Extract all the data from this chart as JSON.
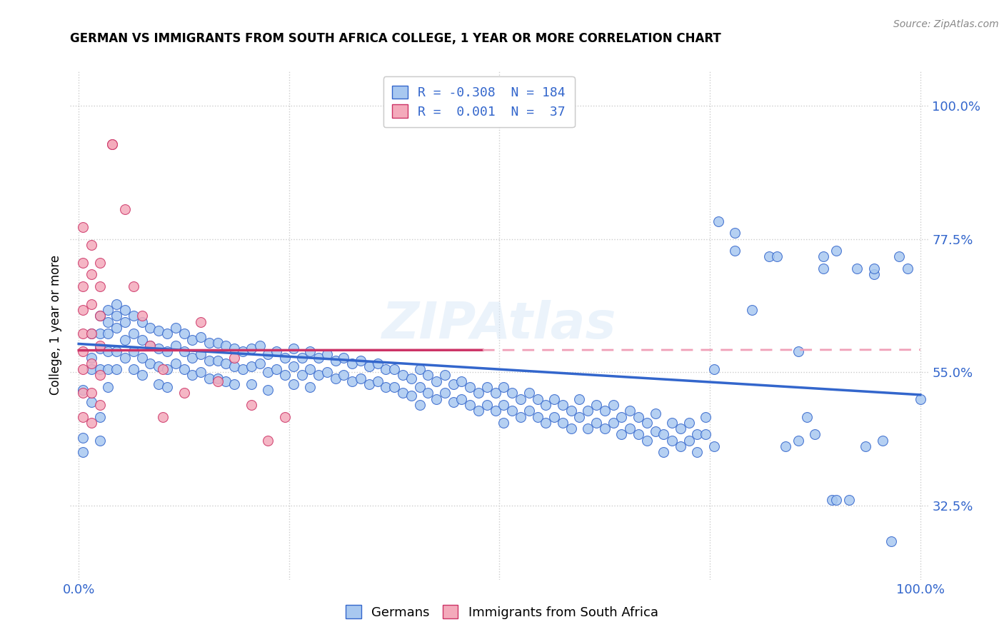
{
  "title": "GERMAN VS IMMIGRANTS FROM SOUTH AFRICA COLLEGE, 1 YEAR OR MORE CORRELATION CHART",
  "source_text": "Source: ZipAtlas.com",
  "ylabel": "College, 1 year or more",
  "blue_scatter_color": "#a8c8f0",
  "pink_scatter_color": "#f4aabb",
  "blue_line_color": "#3366cc",
  "pink_line_color": "#cc3366",
  "pink_line_dashed_color": "#f0a0b8",
  "blue_line_start_x": 0.0,
  "blue_line_start_y": 0.598,
  "blue_line_end_x": 1.0,
  "blue_line_end_y": 0.512,
  "pink_line_start_x": 0.0,
  "pink_line_start_y": 0.587,
  "pink_line_end_x": 1.0,
  "pink_line_end_y": 0.588,
  "watermark": "ZIPAtlas",
  "xlim": [
    -0.01,
    1.01
  ],
  "ylim": [
    0.2,
    1.06
  ],
  "y_axis_ticks": [
    0.325,
    0.55,
    0.775,
    1.0
  ],
  "x_axis_ticks": [
    0.0,
    0.25,
    0.5,
    0.75,
    1.0
  ],
  "x_tick_labels_show": [
    "0.0%",
    "",
    "",
    "",
    "100.0%"
  ],
  "blue_points": [
    [
      0.005,
      0.52
    ],
    [
      0.005,
      0.44
    ],
    [
      0.005,
      0.415
    ],
    [
      0.015,
      0.615
    ],
    [
      0.015,
      0.575
    ],
    [
      0.015,
      0.555
    ],
    [
      0.015,
      0.5
    ],
    [
      0.025,
      0.645
    ],
    [
      0.025,
      0.615
    ],
    [
      0.025,
      0.59
    ],
    [
      0.025,
      0.555
    ],
    [
      0.025,
      0.475
    ],
    [
      0.025,
      0.435
    ],
    [
      0.035,
      0.655
    ],
    [
      0.035,
      0.635
    ],
    [
      0.035,
      0.615
    ],
    [
      0.035,
      0.585
    ],
    [
      0.035,
      0.555
    ],
    [
      0.035,
      0.525
    ],
    [
      0.045,
      0.665
    ],
    [
      0.045,
      0.645
    ],
    [
      0.045,
      0.625
    ],
    [
      0.045,
      0.585
    ],
    [
      0.045,
      0.555
    ],
    [
      0.055,
      0.655
    ],
    [
      0.055,
      0.635
    ],
    [
      0.055,
      0.605
    ],
    [
      0.055,
      0.575
    ],
    [
      0.065,
      0.645
    ],
    [
      0.065,
      0.615
    ],
    [
      0.065,
      0.585
    ],
    [
      0.065,
      0.555
    ],
    [
      0.075,
      0.635
    ],
    [
      0.075,
      0.605
    ],
    [
      0.075,
      0.575
    ],
    [
      0.075,
      0.545
    ],
    [
      0.085,
      0.625
    ],
    [
      0.085,
      0.595
    ],
    [
      0.085,
      0.565
    ],
    [
      0.095,
      0.62
    ],
    [
      0.095,
      0.59
    ],
    [
      0.095,
      0.56
    ],
    [
      0.095,
      0.53
    ],
    [
      0.105,
      0.615
    ],
    [
      0.105,
      0.585
    ],
    [
      0.105,
      0.555
    ],
    [
      0.105,
      0.525
    ],
    [
      0.115,
      0.625
    ],
    [
      0.115,
      0.595
    ],
    [
      0.115,
      0.565
    ],
    [
      0.125,
      0.615
    ],
    [
      0.125,
      0.585
    ],
    [
      0.125,
      0.555
    ],
    [
      0.135,
      0.605
    ],
    [
      0.135,
      0.575
    ],
    [
      0.135,
      0.545
    ],
    [
      0.145,
      0.61
    ],
    [
      0.145,
      0.58
    ],
    [
      0.145,
      0.55
    ],
    [
      0.155,
      0.6
    ],
    [
      0.155,
      0.57
    ],
    [
      0.155,
      0.54
    ],
    [
      0.165,
      0.6
    ],
    [
      0.165,
      0.57
    ],
    [
      0.165,
      0.54
    ],
    [
      0.175,
      0.595
    ],
    [
      0.175,
      0.565
    ],
    [
      0.175,
      0.535
    ],
    [
      0.185,
      0.59
    ],
    [
      0.185,
      0.56
    ],
    [
      0.185,
      0.53
    ],
    [
      0.195,
      0.585
    ],
    [
      0.195,
      0.555
    ],
    [
      0.205,
      0.59
    ],
    [
      0.205,
      0.56
    ],
    [
      0.205,
      0.53
    ],
    [
      0.215,
      0.595
    ],
    [
      0.215,
      0.565
    ],
    [
      0.225,
      0.58
    ],
    [
      0.225,
      0.55
    ],
    [
      0.225,
      0.52
    ],
    [
      0.235,
      0.585
    ],
    [
      0.235,
      0.555
    ],
    [
      0.245,
      0.575
    ],
    [
      0.245,
      0.545
    ],
    [
      0.255,
      0.59
    ],
    [
      0.255,
      0.56
    ],
    [
      0.255,
      0.53
    ],
    [
      0.265,
      0.575
    ],
    [
      0.265,
      0.545
    ],
    [
      0.275,
      0.585
    ],
    [
      0.275,
      0.555
    ],
    [
      0.275,
      0.525
    ],
    [
      0.285,
      0.575
    ],
    [
      0.285,
      0.545
    ],
    [
      0.295,
      0.58
    ],
    [
      0.295,
      0.55
    ],
    [
      0.305,
      0.57
    ],
    [
      0.305,
      0.54
    ],
    [
      0.315,
      0.575
    ],
    [
      0.315,
      0.545
    ],
    [
      0.325,
      0.565
    ],
    [
      0.325,
      0.535
    ],
    [
      0.335,
      0.57
    ],
    [
      0.335,
      0.54
    ],
    [
      0.345,
      0.56
    ],
    [
      0.345,
      0.53
    ],
    [
      0.355,
      0.565
    ],
    [
      0.355,
      0.535
    ],
    [
      0.365,
      0.555
    ],
    [
      0.365,
      0.525
    ],
    [
      0.375,
      0.555
    ],
    [
      0.375,
      0.525
    ],
    [
      0.385,
      0.545
    ],
    [
      0.385,
      0.515
    ],
    [
      0.395,
      0.54
    ],
    [
      0.395,
      0.51
    ],
    [
      0.405,
      0.555
    ],
    [
      0.405,
      0.525
    ],
    [
      0.405,
      0.495
    ],
    [
      0.415,
      0.545
    ],
    [
      0.415,
      0.515
    ],
    [
      0.425,
      0.535
    ],
    [
      0.425,
      0.505
    ],
    [
      0.435,
      0.545
    ],
    [
      0.435,
      0.515
    ],
    [
      0.445,
      0.53
    ],
    [
      0.445,
      0.5
    ],
    [
      0.455,
      0.535
    ],
    [
      0.455,
      0.505
    ],
    [
      0.465,
      0.525
    ],
    [
      0.465,
      0.495
    ],
    [
      0.475,
      0.515
    ],
    [
      0.475,
      0.485
    ],
    [
      0.485,
      0.525
    ],
    [
      0.485,
      0.495
    ],
    [
      0.495,
      0.515
    ],
    [
      0.495,
      0.485
    ],
    [
      0.505,
      0.525
    ],
    [
      0.505,
      0.495
    ],
    [
      0.505,
      0.465
    ],
    [
      0.515,
      0.515
    ],
    [
      0.515,
      0.485
    ],
    [
      0.525,
      0.505
    ],
    [
      0.525,
      0.475
    ],
    [
      0.535,
      0.515
    ],
    [
      0.535,
      0.485
    ],
    [
      0.545,
      0.505
    ],
    [
      0.545,
      0.475
    ],
    [
      0.555,
      0.495
    ],
    [
      0.555,
      0.465
    ],
    [
      0.565,
      0.505
    ],
    [
      0.565,
      0.475
    ],
    [
      0.575,
      0.495
    ],
    [
      0.575,
      0.465
    ],
    [
      0.585,
      0.485
    ],
    [
      0.585,
      0.455
    ],
    [
      0.595,
      0.505
    ],
    [
      0.595,
      0.475
    ],
    [
      0.605,
      0.485
    ],
    [
      0.605,
      0.455
    ],
    [
      0.615,
      0.495
    ],
    [
      0.615,
      0.465
    ],
    [
      0.625,
      0.485
    ],
    [
      0.625,
      0.455
    ],
    [
      0.635,
      0.495
    ],
    [
      0.635,
      0.465
    ],
    [
      0.645,
      0.475
    ],
    [
      0.645,
      0.445
    ],
    [
      0.655,
      0.485
    ],
    [
      0.655,
      0.455
    ],
    [
      0.665,
      0.475
    ],
    [
      0.665,
      0.445
    ],
    [
      0.675,
      0.465
    ],
    [
      0.675,
      0.435
    ],
    [
      0.685,
      0.48
    ],
    [
      0.685,
      0.45
    ],
    [
      0.695,
      0.445
    ],
    [
      0.695,
      0.415
    ],
    [
      0.705,
      0.465
    ],
    [
      0.705,
      0.435
    ],
    [
      0.715,
      0.455
    ],
    [
      0.715,
      0.425
    ],
    [
      0.725,
      0.465
    ],
    [
      0.725,
      0.435
    ],
    [
      0.735,
      0.445
    ],
    [
      0.735,
      0.415
    ],
    [
      0.745,
      0.475
    ],
    [
      0.745,
      0.445
    ],
    [
      0.755,
      0.555
    ],
    [
      0.755,
      0.425
    ],
    [
      0.76,
      0.805
    ],
    [
      0.78,
      0.785
    ],
    [
      0.78,
      0.755
    ],
    [
      0.8,
      0.655
    ],
    [
      0.82,
      0.745
    ],
    [
      0.83,
      0.745
    ],
    [
      0.84,
      0.425
    ],
    [
      0.855,
      0.585
    ],
    [
      0.855,
      0.435
    ],
    [
      0.865,
      0.475
    ],
    [
      0.875,
      0.445
    ],
    [
      0.885,
      0.745
    ],
    [
      0.885,
      0.725
    ],
    [
      0.895,
      0.335
    ],
    [
      0.9,
      0.335
    ],
    [
      0.9,
      0.755
    ],
    [
      0.915,
      0.335
    ],
    [
      0.925,
      0.725
    ],
    [
      0.935,
      0.425
    ],
    [
      0.945,
      0.715
    ],
    [
      0.945,
      0.725
    ],
    [
      0.955,
      0.435
    ],
    [
      0.965,
      0.265
    ],
    [
      0.975,
      0.745
    ],
    [
      0.985,
      0.725
    ],
    [
      1.0,
      0.505
    ]
  ],
  "pink_points": [
    [
      0.005,
      0.795
    ],
    [
      0.005,
      0.735
    ],
    [
      0.005,
      0.695
    ],
    [
      0.005,
      0.655
    ],
    [
      0.005,
      0.615
    ],
    [
      0.005,
      0.585
    ],
    [
      0.005,
      0.555
    ],
    [
      0.005,
      0.515
    ],
    [
      0.005,
      0.475
    ],
    [
      0.015,
      0.765
    ],
    [
      0.015,
      0.715
    ],
    [
      0.015,
      0.665
    ],
    [
      0.015,
      0.615
    ],
    [
      0.015,
      0.565
    ],
    [
      0.015,
      0.515
    ],
    [
      0.015,
      0.465
    ],
    [
      0.025,
      0.735
    ],
    [
      0.025,
      0.695
    ],
    [
      0.025,
      0.645
    ],
    [
      0.025,
      0.595
    ],
    [
      0.025,
      0.545
    ],
    [
      0.025,
      0.495
    ],
    [
      0.04,
      0.935
    ],
    [
      0.04,
      0.935
    ],
    [
      0.055,
      0.825
    ],
    [
      0.065,
      0.695
    ],
    [
      0.075,
      0.645
    ],
    [
      0.085,
      0.595
    ],
    [
      0.1,
      0.555
    ],
    [
      0.1,
      0.475
    ],
    [
      0.125,
      0.515
    ],
    [
      0.145,
      0.635
    ],
    [
      0.165,
      0.535
    ],
    [
      0.185,
      0.575
    ],
    [
      0.205,
      0.495
    ],
    [
      0.225,
      0.435
    ],
    [
      0.245,
      0.475
    ]
  ]
}
